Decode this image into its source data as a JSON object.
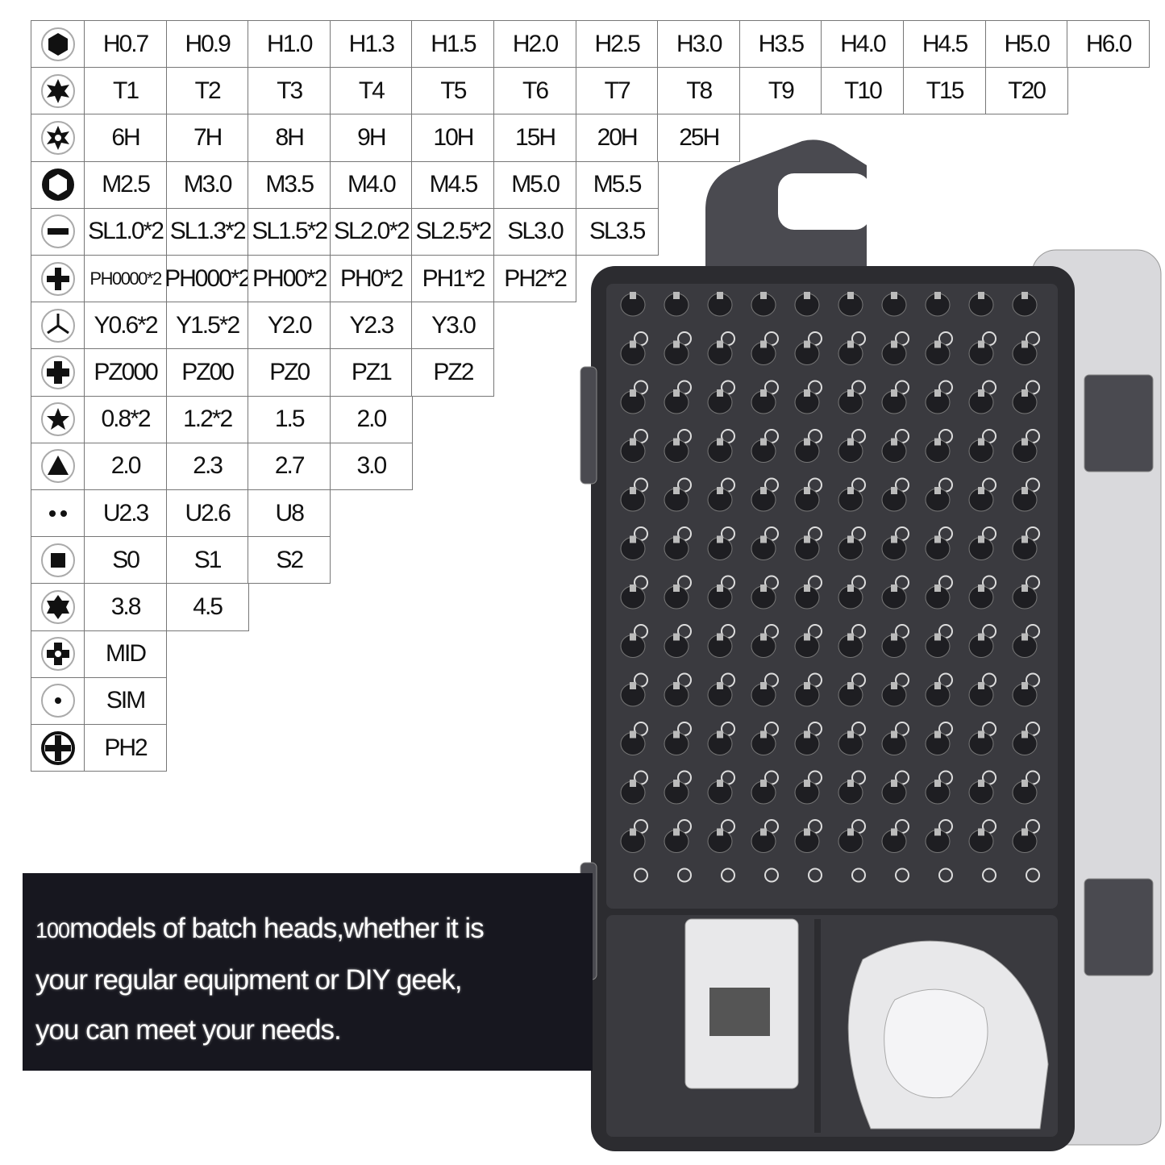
{
  "table": {
    "rows": [
      {
        "icon": "hex-icon",
        "cells": [
          "H0.7",
          "H0.9",
          "H1.0",
          "H1.3",
          "H1.5",
          "H2.0",
          "H2.5",
          "H3.0",
          "H3.5",
          "H4.0",
          "H4.5",
          "H5.0",
          "H6.0"
        ]
      },
      {
        "icon": "torx-icon",
        "cells": [
          "T1",
          "T2",
          "T3",
          "T4",
          "T5",
          "T6",
          "T7",
          "T8",
          "T9",
          "T10",
          "T15",
          "T20"
        ]
      },
      {
        "icon": "torx-hole-icon",
        "cells": [
          "6H",
          "7H",
          "8H",
          "9H",
          "10H",
          "15H",
          "20H",
          "25H"
        ]
      },
      {
        "icon": "hex-socket-icon",
        "cells": [
          "M2.5",
          "M3.0",
          "M3.5",
          "M4.0",
          "M4.5",
          "M5.0",
          "M5.5"
        ]
      },
      {
        "icon": "slotted-icon",
        "cells": [
          "SL1.0*2",
          "SL1.3*2",
          "SL1.5*2",
          "SL2.0*2",
          "SL2.5*2",
          "SL3.0",
          "SL3.5"
        ]
      },
      {
        "icon": "phillips-icon",
        "cells": [
          "PH0000*2",
          "PH000*2",
          "PH00*2",
          "PH0*2",
          "PH1*2",
          "PH2*2"
        ]
      },
      {
        "icon": "tri-wing-icon",
        "cells": [
          "Y0.6*2",
          "Y1.5*2",
          "Y2.0",
          "Y2.3",
          "Y3.0"
        ]
      },
      {
        "icon": "pozidriv-icon",
        "cells": [
          "PZ000",
          "PZ00",
          "PZ0",
          "PZ1",
          "PZ2"
        ]
      },
      {
        "icon": "pentalobe-icon",
        "cells": [
          "0.8*2",
          "1.2*2",
          "1.5",
          "2.0"
        ]
      },
      {
        "icon": "triangle-icon",
        "cells": [
          "2.0",
          "2.3",
          "2.7",
          "3.0"
        ]
      },
      {
        "icon": "u-shape-icon",
        "cells": [
          "U2.3",
          "U2.6",
          "U8"
        ]
      },
      {
        "icon": "square-icon",
        "cells": [
          "S0",
          "S1",
          "S2"
        ]
      },
      {
        "icon": "star-icon",
        "cells": [
          "3.8",
          "4.5"
        ]
      },
      {
        "icon": "mid-icon",
        "cells": [
          "MID"
        ]
      },
      {
        "icon": "sim-icon",
        "cells": [
          "SIM"
        ]
      },
      {
        "icon": "ph2-cross-icon",
        "cells": [
          "PH2"
        ]
      }
    ]
  },
  "caption": {
    "number": "100",
    "line1": "models of batch heads,whether it is",
    "line2": "your regular equipment or DIY geek,",
    "line3": "you can meet your needs."
  },
  "colors": {
    "case": "#2c2c30",
    "caption_bg": "#17171f",
    "accessory": "#e8e8ea"
  }
}
